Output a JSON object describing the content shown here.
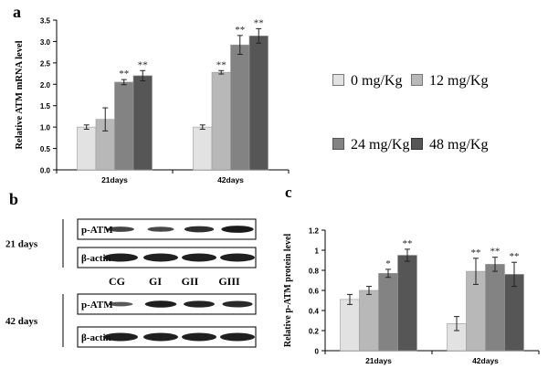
{
  "panel_labels": {
    "a": "a",
    "b": "b",
    "c": "c"
  },
  "colors": {
    "s0": "#e2e2e2",
    "s1": "#b8b8b8",
    "s2": "#838383",
    "s3": "#565656",
    "axis": "#000000",
    "band": "#141414",
    "blotBox": "#111111"
  },
  "legend": {
    "items": [
      "0 mg/Kg",
      "12 mg/Kg",
      "24 mg/Kg",
      "48 mg/Kg"
    ]
  },
  "blot": {
    "rows": [
      "p-ATM",
      "β-actin",
      "p-ATM",
      "β-actin"
    ],
    "groups": [
      "21 days",
      "42 days"
    ],
    "lanes": [
      "CG",
      "GI",
      "GII",
      "GIII"
    ],
    "band_intensity_21_patm": [
      0.55,
      0.5,
      0.75,
      0.95
    ],
    "band_intensity_42_patm": [
      0.35,
      0.9,
      0.85,
      0.8
    ]
  },
  "chart_data": [
    {
      "id": "a",
      "type": "bar",
      "title": "",
      "xlabel": "",
      "ylabel": "Relative ATM mRNA level",
      "categories": [
        "21days",
        "42days"
      ],
      "ylim": [
        0,
        3.5
      ],
      "yticks": [
        "0.0",
        "0.5",
        "1.0",
        "1.5",
        "2.0",
        "2.5",
        "3.0",
        "3.5"
      ],
      "series": [
        {
          "name": "0 mg/Kg",
          "values": [
            1.0,
            1.0
          ],
          "errors": [
            0.05,
            0.05
          ],
          "labels": [
            "",
            ""
          ]
        },
        {
          "name": "12 mg/Kg",
          "values": [
            1.18,
            2.28
          ],
          "errors": [
            0.27,
            0.04
          ],
          "labels": [
            "",
            "**"
          ]
        },
        {
          "name": "24 mg/Kg",
          "values": [
            2.05,
            2.92
          ],
          "errors": [
            0.06,
            0.22
          ],
          "labels": [
            "**",
            "**"
          ]
        },
        {
          "name": "48 mg/Kg",
          "values": [
            2.2,
            3.13
          ],
          "errors": [
            0.12,
            0.17
          ],
          "labels": [
            "**",
            "**"
          ]
        }
      ]
    },
    {
      "id": "c",
      "type": "bar",
      "title": "",
      "xlabel": "",
      "ylabel": "Relative p-ATM protein level",
      "categories": [
        "21days",
        "42days"
      ],
      "ylim": [
        0,
        1.2
      ],
      "yticks": [
        "0",
        "0.2",
        "0.4",
        "0.6",
        "0.8",
        "1",
        "1.2"
      ],
      "series": [
        {
          "name": "0 mg/Kg",
          "values": [
            0.51,
            0.27
          ],
          "errors": [
            0.05,
            0.07
          ],
          "labels": [
            "",
            ""
          ]
        },
        {
          "name": "12 mg/Kg",
          "values": [
            0.6,
            0.79
          ],
          "errors": [
            0.04,
            0.13
          ],
          "labels": [
            "",
            "**"
          ]
        },
        {
          "name": "24 mg/Kg",
          "values": [
            0.77,
            0.86
          ],
          "errors": [
            0.04,
            0.07
          ],
          "labels": [
            "*",
            "**"
          ]
        },
        {
          "name": "48 mg/Kg",
          "values": [
            0.95,
            0.76
          ],
          "errors": [
            0.06,
            0.12
          ],
          "labels": [
            "**",
            "**"
          ]
        }
      ]
    }
  ]
}
